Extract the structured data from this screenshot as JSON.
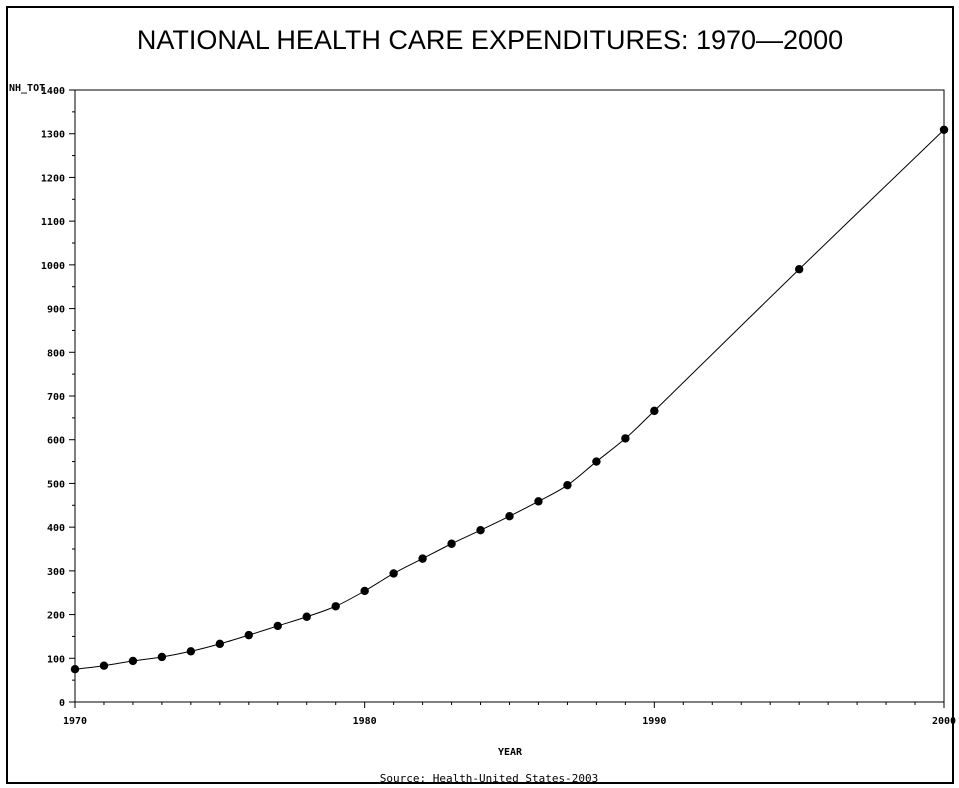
{
  "chart_data": {
    "type": "line",
    "title": "NATIONAL HEALTH CARE EXPENDITURES: 1970—2000",
    "xlabel": "YEAR",
    "ylabel": "NH_TOT",
    "source": "Source: Health-United States-2003",
    "xlim": [
      1970,
      2000
    ],
    "ylim": [
      0,
      1400
    ],
    "x_ticks": [
      1970,
      1980,
      1990,
      2000
    ],
    "y_ticks": [
      0,
      100,
      200,
      300,
      400,
      500,
      600,
      700,
      800,
      900,
      1000,
      1100,
      1200,
      1300,
      1400
    ],
    "grid": false,
    "series": [
      {
        "x": [
          1970,
          1971,
          1972,
          1973,
          1974,
          1975,
          1976,
          1977,
          1978,
          1979,
          1980,
          1981,
          1982,
          1983,
          1984,
          1985,
          1986,
          1987,
          1988,
          1989,
          1990,
          1995,
          2000
        ],
        "y": [
          75,
          83,
          94,
          103,
          116,
          133,
          153,
          174,
          195,
          219,
          254,
          294,
          328,
          362,
          393,
          425,
          459,
          496,
          550,
          603,
          666,
          990,
          1309
        ]
      }
    ],
    "colors": {
      "line": "#000000",
      "marker": "#000000"
    }
  }
}
